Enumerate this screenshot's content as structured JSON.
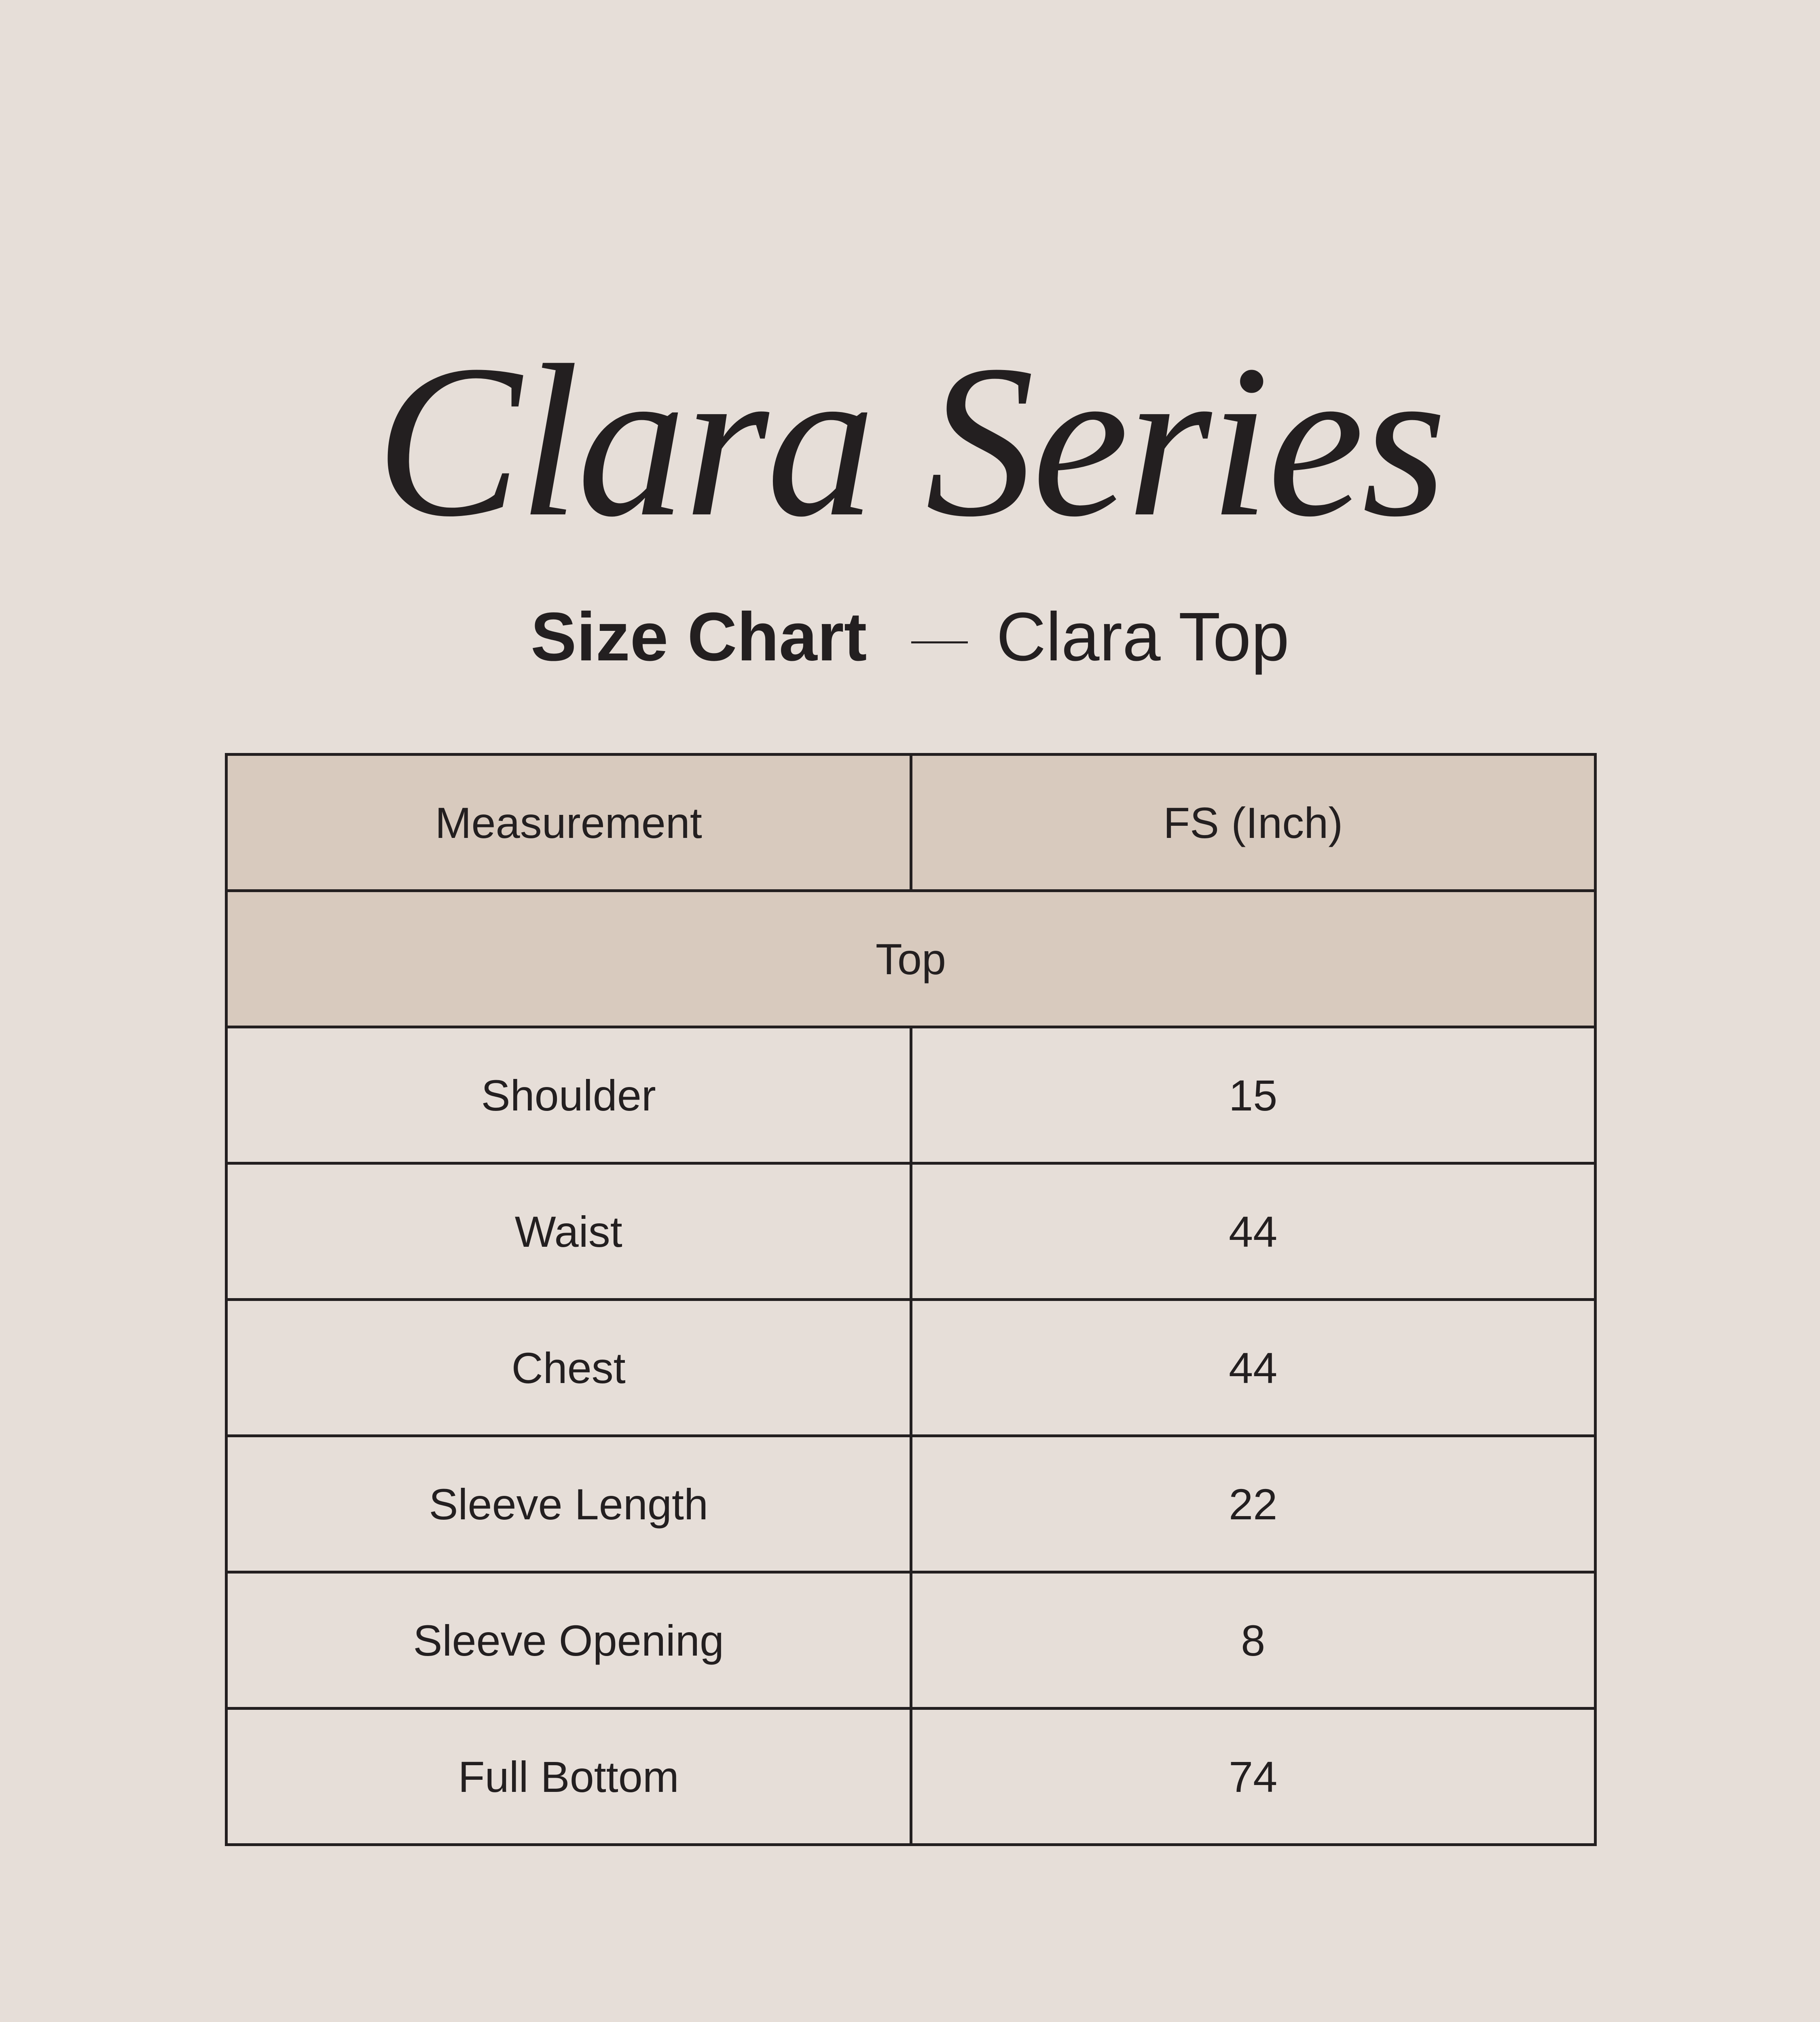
{
  "title": "Clara Series",
  "subtitle": {
    "main": "Size Chart",
    "product": "Clara Top"
  },
  "table": {
    "headers": [
      "Measurement",
      "FS (Inch)"
    ],
    "section": "Top",
    "rows": [
      [
        "Shoulder",
        "15"
      ],
      [
        "Waist",
        "44"
      ],
      [
        "Chest",
        "44"
      ],
      [
        "Sleeve Length",
        "22"
      ],
      [
        "Sleeve Opening",
        "8"
      ],
      [
        "Full Bottom",
        "74"
      ]
    ]
  },
  "colors": {
    "background": "#e6ded8",
    "header_fill": "#d8cabe",
    "text": "#231f20"
  }
}
